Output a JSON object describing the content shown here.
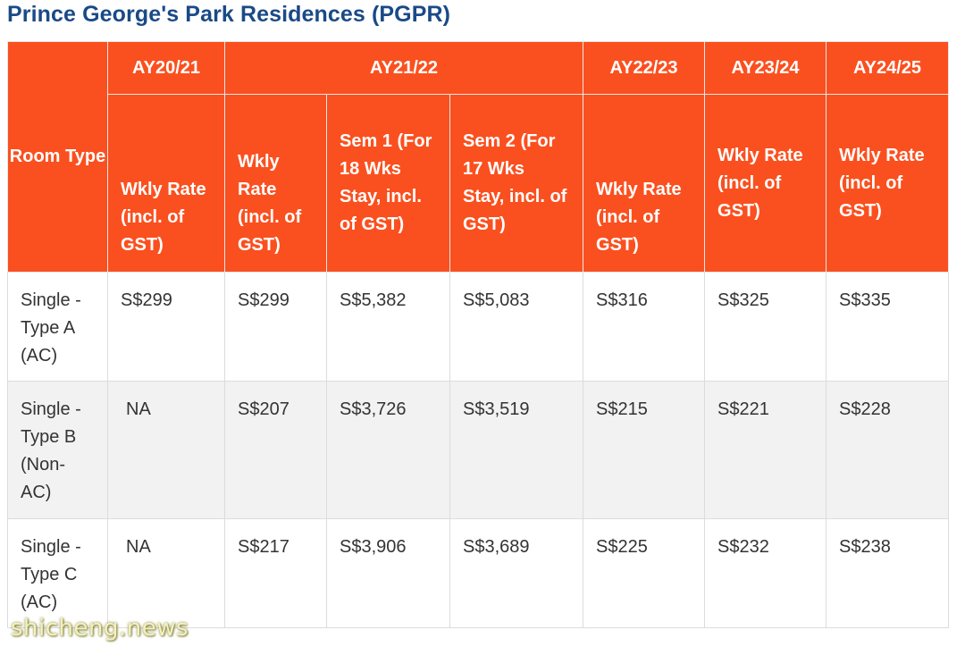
{
  "title": "Prince George's Park Residences (PGPR)",
  "table": {
    "room_type_header": "Room Type",
    "years": [
      "AY20/21",
      "AY21/22",
      "AY22/23",
      "AY23/24",
      "AY24/25"
    ],
    "subheaders": [
      "Wkly Rate (incl. of GST)",
      "Wkly Rate (incl. of GST)",
      "Sem 1 (For 18 Wks Stay, incl. of GST)",
      "Sem 2 (For 17 Wks Stay, incl. of GST)",
      "Wkly Rate (incl. of GST)",
      "Wkly Rate (incl. of GST)",
      "Wkly Rate (incl. of GST)"
    ],
    "rows": [
      {
        "room": "Single - Type A (AC)",
        "values": [
          "S$299",
          "S$299",
          "S$5,382",
          "S$5,083",
          "S$316",
          "S$325",
          "S$335"
        ]
      },
      {
        "room": "Single - Type B (Non-AC)",
        "values": [
          "NA",
          "S$207",
          "S$3,726",
          "S$3,519",
          "S$215",
          "S$221",
          "S$228"
        ]
      },
      {
        "room": "Single - Type C (AC)",
        "values": [
          "NA",
          "S$217",
          "S$3,906",
          "S$3,689",
          "S$225",
          "S$232",
          "S$238"
        ]
      }
    ]
  },
  "watermark": "shicheng.news"
}
